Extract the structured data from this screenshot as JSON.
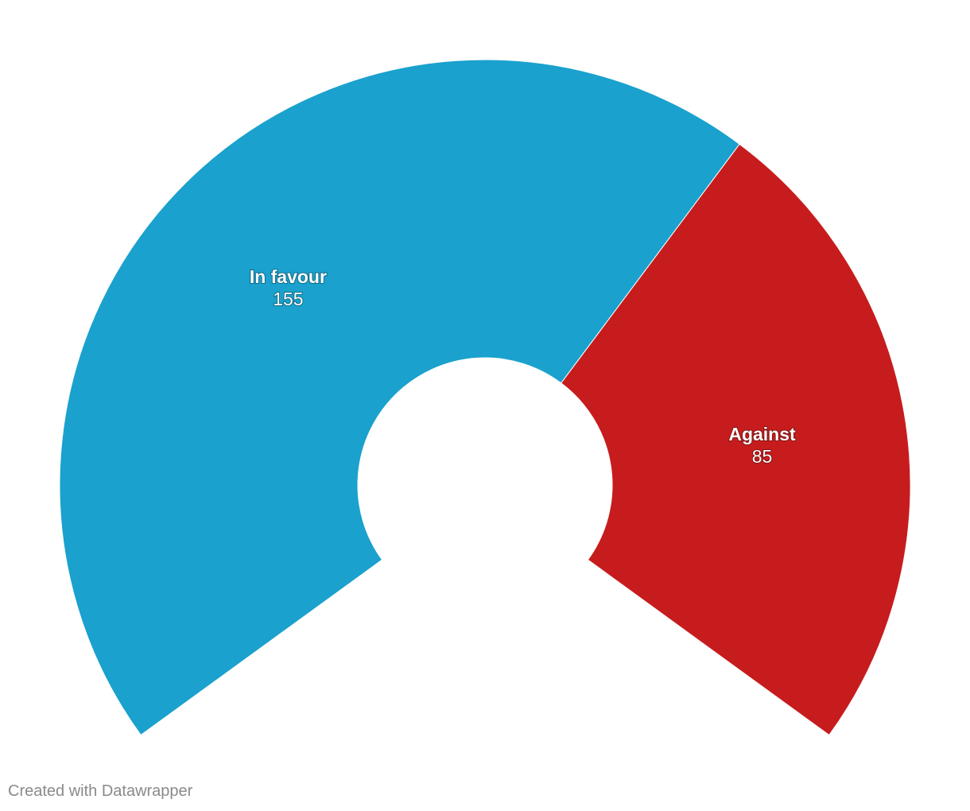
{
  "chart_data": {
    "type": "pie",
    "subtype": "semicircle-donut",
    "categories": [
      "In favour",
      "Against"
    ],
    "values": [
      155,
      85
    ],
    "colors": [
      "#1aa1cd",
      "#c71c1d"
    ],
    "title": "",
    "legend": "none"
  },
  "footer": {
    "credit": "Created with Datawrapper"
  }
}
